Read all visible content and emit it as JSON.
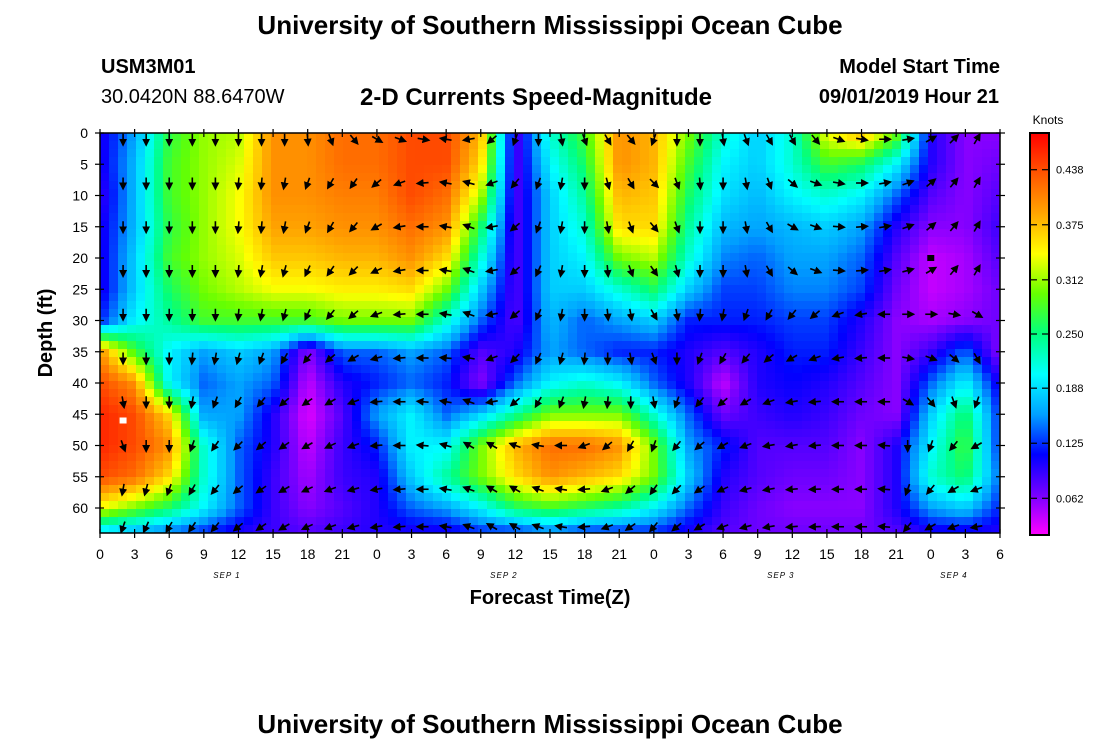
{
  "page": {
    "title": "University of Southern Mississippi Ocean Cube",
    "footer_title": "University of Southern Mississippi Ocean Cube",
    "station_id": "USM3M01",
    "station_coords": "30.0420N 88.6470W",
    "subtitle": "2-D Currents Speed-Magnitude",
    "model_start_label": "Model Start Time",
    "model_start_value": "09/01/2019 Hour 21"
  },
  "chart_data": {
    "type": "heatmap",
    "title": "2-D Currents Speed-Magnitude",
    "xlabel": "Forecast Time(Z)",
    "ylabel": "Depth (ft)",
    "colorbar_label": "Knots",
    "xlim": [
      0,
      78
    ],
    "ylim": [
      64,
      0
    ],
    "x_tick_values": [
      0,
      3,
      6,
      9,
      12,
      15,
      18,
      21,
      24,
      27,
      30,
      33,
      36,
      39,
      42,
      45,
      48,
      51,
      54,
      57,
      60,
      63,
      66,
      69,
      72,
      75,
      78
    ],
    "x_tick_labels": [
      "0",
      "3",
      "6",
      "9",
      "12",
      "15",
      "18",
      "21",
      "0",
      "3",
      "6",
      "9",
      "12",
      "15",
      "18",
      "21",
      "0",
      "3",
      "6",
      "9",
      "12",
      "15",
      "18",
      "21",
      "0",
      "3",
      "6"
    ],
    "date_labels": [
      {
        "label": "SEP 1",
        "x": 11
      },
      {
        "label": "SEP 2",
        "x": 35
      },
      {
        "label": "SEP 3",
        "x": 59
      },
      {
        "label": "SEP 4",
        "x": 74
      }
    ],
    "y_tick_values": [
      0,
      5,
      10,
      15,
      20,
      25,
      30,
      35,
      40,
      45,
      50,
      55,
      60
    ],
    "y_tick_labels": [
      "0",
      "5",
      "10",
      "15",
      "20",
      "25",
      "30",
      "35",
      "40",
      "45",
      "50",
      "55",
      "60"
    ],
    "colorbar_ticks": [
      "0.438",
      "0.375",
      "0.312",
      "0.250",
      "0.188",
      "0.125",
      "0.062"
    ],
    "colorbar_range": [
      0.02,
      0.48
    ],
    "colormap": [
      "#ff00ff",
      "#7700ff",
      "#0000ff",
      "#00a0ff",
      "#00ffff",
      "#00ff80",
      "#66ff00",
      "#ffff00",
      "#ffa500",
      "#ff5500",
      "#ff0000"
    ],
    "time_columns": [
      0,
      3,
      6,
      9,
      12,
      15,
      18,
      21,
      24,
      27,
      30,
      33,
      36,
      39,
      42,
      45,
      48,
      51,
      54,
      57,
      60,
      63,
      66,
      69,
      72,
      75,
      78
    ],
    "depth_rows": [
      0,
      5,
      10,
      15,
      20,
      25,
      30,
      35,
      40,
      45,
      50,
      55,
      60,
      64
    ],
    "speed_knots": [
      [
        0.1,
        0.16,
        0.27,
        0.31,
        0.32,
        0.4,
        0.4,
        0.42,
        0.42,
        0.44,
        0.44,
        0.38,
        0.08,
        0.22,
        0.28,
        0.4,
        0.38,
        0.3,
        0.22,
        0.18,
        0.22,
        0.34,
        0.38,
        0.3,
        0.1,
        0.06,
        0.06
      ],
      [
        0.1,
        0.17,
        0.28,
        0.31,
        0.33,
        0.4,
        0.4,
        0.42,
        0.42,
        0.44,
        0.44,
        0.36,
        0.08,
        0.2,
        0.26,
        0.4,
        0.38,
        0.28,
        0.2,
        0.18,
        0.22,
        0.28,
        0.26,
        0.2,
        0.1,
        0.06,
        0.07
      ],
      [
        0.09,
        0.17,
        0.28,
        0.31,
        0.34,
        0.4,
        0.4,
        0.41,
        0.41,
        0.44,
        0.42,
        0.32,
        0.08,
        0.18,
        0.24,
        0.38,
        0.37,
        0.26,
        0.19,
        0.17,
        0.2,
        0.22,
        0.2,
        0.14,
        0.08,
        0.06,
        0.08
      ],
      [
        0.1,
        0.17,
        0.27,
        0.31,
        0.34,
        0.39,
        0.39,
        0.4,
        0.4,
        0.42,
        0.4,
        0.26,
        0.08,
        0.18,
        0.22,
        0.36,
        0.36,
        0.24,
        0.17,
        0.16,
        0.17,
        0.18,
        0.16,
        0.1,
        0.06,
        0.06,
        0.09
      ],
      [
        0.1,
        0.18,
        0.28,
        0.31,
        0.33,
        0.37,
        0.37,
        0.38,
        0.38,
        0.4,
        0.36,
        0.22,
        0.08,
        0.18,
        0.2,
        0.3,
        0.32,
        0.22,
        0.15,
        0.14,
        0.16,
        0.16,
        0.14,
        0.08,
        0.04,
        0.05,
        0.08
      ],
      [
        0.1,
        0.18,
        0.26,
        0.3,
        0.32,
        0.34,
        0.34,
        0.35,
        0.35,
        0.36,
        0.3,
        0.18,
        0.08,
        0.18,
        0.18,
        0.22,
        0.26,
        0.18,
        0.13,
        0.13,
        0.15,
        0.15,
        0.13,
        0.07,
        0.04,
        0.05,
        0.07
      ],
      [
        0.12,
        0.2,
        0.24,
        0.28,
        0.28,
        0.28,
        0.28,
        0.3,
        0.3,
        0.3,
        0.22,
        0.14,
        0.08,
        0.17,
        0.14,
        0.16,
        0.18,
        0.12,
        0.12,
        0.12,
        0.13,
        0.13,
        0.1,
        0.06,
        0.05,
        0.06,
        0.07
      ],
      [
        0.4,
        0.28,
        0.2,
        0.16,
        0.18,
        0.16,
        0.06,
        0.14,
        0.14,
        0.16,
        0.14,
        0.08,
        0.1,
        0.16,
        0.14,
        0.12,
        0.12,
        0.1,
        0.08,
        0.1,
        0.12,
        0.12,
        0.09,
        0.06,
        0.09,
        0.14,
        0.06
      ],
      [
        0.44,
        0.4,
        0.2,
        0.14,
        0.16,
        0.14,
        0.04,
        0.1,
        0.12,
        0.14,
        0.12,
        0.06,
        0.14,
        0.2,
        0.22,
        0.2,
        0.14,
        0.1,
        0.04,
        0.1,
        0.11,
        0.1,
        0.08,
        0.06,
        0.14,
        0.2,
        0.1
      ],
      [
        0.46,
        0.44,
        0.36,
        0.16,
        0.16,
        0.1,
        0.03,
        0.08,
        0.16,
        0.2,
        0.14,
        0.18,
        0.24,
        0.3,
        0.3,
        0.3,
        0.22,
        0.14,
        0.07,
        0.09,
        0.1,
        0.09,
        0.07,
        0.06,
        0.18,
        0.26,
        0.12
      ],
      [
        0.46,
        0.44,
        0.4,
        0.22,
        0.14,
        0.1,
        0.04,
        0.09,
        0.12,
        0.2,
        0.2,
        0.3,
        0.38,
        0.42,
        0.42,
        0.4,
        0.3,
        0.16,
        0.12,
        0.08,
        0.08,
        0.08,
        0.06,
        0.1,
        0.2,
        0.28,
        0.12
      ],
      [
        0.44,
        0.42,
        0.36,
        0.22,
        0.14,
        0.09,
        0.05,
        0.09,
        0.1,
        0.18,
        0.24,
        0.3,
        0.36,
        0.4,
        0.38,
        0.36,
        0.3,
        0.18,
        0.1,
        0.08,
        0.07,
        0.07,
        0.06,
        0.1,
        0.22,
        0.26,
        0.14
      ],
      [
        0.34,
        0.3,
        0.26,
        0.2,
        0.14,
        0.09,
        0.06,
        0.08,
        0.1,
        0.14,
        0.16,
        0.2,
        0.26,
        0.28,
        0.26,
        0.24,
        0.2,
        0.14,
        0.09,
        0.07,
        0.06,
        0.06,
        0.06,
        0.1,
        0.16,
        0.18,
        0.12
      ],
      [
        0.18,
        0.16,
        0.14,
        0.12,
        0.1,
        0.09,
        0.08,
        0.09,
        0.1,
        0.1,
        0.1,
        0.12,
        0.12,
        0.14,
        0.12,
        0.12,
        0.12,
        0.1,
        0.08,
        0.07,
        0.07,
        0.07,
        0.07,
        0.08,
        0.1,
        0.1,
        0.1
      ]
    ],
    "vector_columns": [
      2,
      4,
      6,
      8,
      10,
      12,
      14,
      16,
      18,
      20,
      22,
      24,
      26,
      28,
      30,
      32,
      34,
      36,
      38,
      40,
      42,
      44,
      46,
      48,
      50,
      52,
      54,
      56,
      58,
      60,
      62,
      64,
      66,
      68,
      70,
      72,
      74,
      76
    ],
    "vector_rows": [
      1,
      8,
      15,
      22,
      29,
      36,
      43,
      50,
      57,
      63
    ],
    "vector_directions_deg": [
      [
        180,
        180,
        180,
        180,
        180,
        180,
        180,
        180,
        175,
        160,
        140,
        120,
        110,
        100,
        280,
        260,
        230,
        200,
        180,
        170,
        160,
        150,
        140,
        200,
        180,
        180,
        170,
        160,
        150,
        150,
        140,
        110,
        100,
        90,
        80,
        60,
        45,
        30
      ],
      [
        180,
        180,
        180,
        180,
        180,
        185,
        185,
        190,
        200,
        210,
        215,
        230,
        250,
        265,
        280,
        285,
        250,
        220,
        200,
        190,
        180,
        165,
        150,
        135,
        160,
        175,
        180,
        170,
        160,
        130,
        110,
        100,
        90,
        80,
        70,
        50,
        40,
        30
      ],
      [
        180,
        180,
        180,
        180,
        180,
        185,
        185,
        190,
        200,
        210,
        220,
        240,
        260,
        270,
        280,
        290,
        260,
        230,
        200,
        190,
        180,
        170,
        160,
        140,
        160,
        180,
        180,
        170,
        150,
        120,
        110,
        95,
        85,
        80,
        70,
        50,
        40,
        30
      ],
      [
        180,
        180,
        180,
        180,
        180,
        185,
        190,
        195,
        205,
        215,
        225,
        245,
        260,
        270,
        280,
        290,
        260,
        230,
        205,
        190,
        180,
        175,
        160,
        145,
        165,
        180,
        180,
        170,
        150,
        130,
        110,
        95,
        85,
        80,
        75,
        60,
        40,
        30
      ],
      [
        180,
        180,
        180,
        180,
        180,
        185,
        190,
        195,
        205,
        220,
        230,
        250,
        265,
        270,
        280,
        290,
        260,
        230,
        205,
        190,
        180,
        175,
        170,
        150,
        170,
        185,
        190,
        200,
        210,
        220,
        230,
        250,
        260,
        270,
        90,
        90,
        100,
        120
      ],
      [
        180,
        180,
        180,
        185,
        190,
        195,
        200,
        210,
        220,
        230,
        240,
        255,
        265,
        270,
        275,
        280,
        250,
        225,
        205,
        195,
        185,
        180,
        170,
        160,
        180,
        200,
        210,
        220,
        230,
        240,
        250,
        260,
        265,
        270,
        100,
        110,
        130,
        150
      ],
      [
        170,
        180,
        180,
        190,
        200,
        210,
        220,
        230,
        235,
        240,
        250,
        265,
        270,
        275,
        280,
        290,
        260,
        230,
        210,
        200,
        190,
        185,
        180,
        170,
        200,
        220,
        230,
        240,
        250,
        260,
        265,
        270,
        270,
        270,
        120,
        140,
        160,
        200
      ],
      [
        160,
        180,
        180,
        200,
        215,
        225,
        230,
        235,
        240,
        245,
        250,
        265,
        270,
        275,
        285,
        300,
        300,
        290,
        280,
        270,
        250,
        230,
        210,
        200,
        220,
        230,
        240,
        250,
        260,
        260,
        265,
        270,
        270,
        275,
        180,
        200,
        220,
        240
      ],
      [
        190,
        195,
        200,
        210,
        220,
        230,
        235,
        240,
        245,
        250,
        255,
        260,
        265,
        270,
        280,
        290,
        300,
        300,
        290,
        280,
        265,
        250,
        230,
        215,
        225,
        235,
        245,
        255,
        260,
        265,
        268,
        270,
        270,
        275,
        200,
        220,
        240,
        250
      ],
      [
        200,
        205,
        210,
        215,
        220,
        230,
        235,
        240,
        245,
        250,
        255,
        260,
        265,
        270,
        280,
        290,
        300,
        300,
        290,
        280,
        265,
        250,
        235,
        220,
        230,
        240,
        250,
        255,
        260,
        265,
        268,
        270,
        270,
        275,
        220,
        240,
        250,
        260
      ]
    ],
    "markers": [
      {
        "x": 2,
        "depth": 46,
        "color": "#ffffff"
      },
      {
        "x": 72,
        "depth": 20,
        "color": "#000000"
      }
    ]
  }
}
